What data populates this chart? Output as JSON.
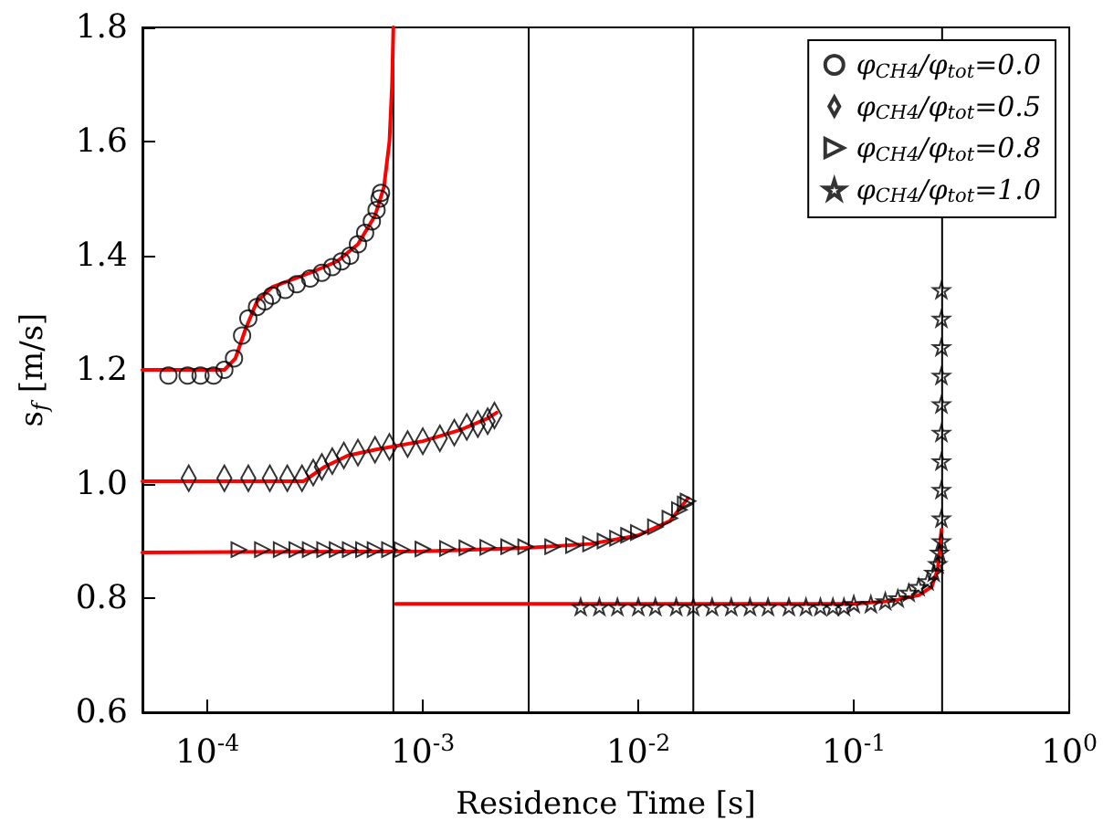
{
  "chart_data": {
    "type": "scatter",
    "xlabel": "Residence Time [s]",
    "ylabel": "s$_{f}$ [m/s]",
    "log": "x",
    "grid": false,
    "legend": "top right",
    "xlim": [
      5e-05,
      1
    ],
    "ylim": [
      0.6,
      1.8
    ],
    "xticks": [
      {
        "value": 0.0001,
        "label": "10$^{-4}$"
      },
      {
        "value": 0.001,
        "label": "10$^{-3}$"
      },
      {
        "value": 0.01,
        "label": "10$^{-2}$"
      },
      {
        "value": 0.1,
        "label": "10$^{-1}$"
      },
      {
        "value": 1,
        "label": "10$^{0}$"
      }
    ],
    "yticks": [
      0.6,
      0.8,
      {
        "value": 1.0,
        "label": "1.0"
      },
      1.2,
      1.4,
      1.6,
      1.8
    ],
    "ref_lines": [
      {
        "axis": "x",
        "value": 0.00073,
        "color": "#000000"
      },
      {
        "axis": "x",
        "value": 0.0031,
        "color": "#000000"
      },
      {
        "axis": "x",
        "value": 0.018,
        "color": "#000000"
      },
      {
        "axis": "x",
        "value": 0.257,
        "color": "#000000"
      }
    ],
    "series": [
      {
        "type": "line",
        "color": "#ff0000",
        "marker": "none",
        "x": [
          5e-05,
          0.00012,
          0.000135,
          0.00015,
          0.00017,
          0.0002,
          0.0003,
          0.0004,
          0.0005,
          0.0006,
          0.00066,
          0.0007,
          0.00072,
          0.00073
        ],
        "values": [
          1.2,
          1.2,
          1.22,
          1.27,
          1.32,
          1.345,
          1.37,
          1.39,
          1.42,
          1.47,
          1.52,
          1.6,
          1.7,
          1.8
        ]
      },
      {
        "type": "line",
        "color": "#ff0000",
        "marker": "none",
        "x": [
          5e-05,
          0.00028,
          0.00035,
          0.00045,
          0.0006,
          0.001,
          0.0015,
          0.002,
          0.0022
        ],
        "values": [
          1.005,
          1.005,
          1.03,
          1.05,
          1.06,
          1.075,
          1.095,
          1.115,
          1.125
        ]
      },
      {
        "type": "line",
        "color": "#ff0000",
        "marker": "none",
        "x": [
          5e-05,
          0.001,
          0.003,
          0.006,
          0.01,
          0.014,
          0.017
        ],
        "values": [
          0.88,
          0.882,
          0.888,
          0.895,
          0.91,
          0.935,
          0.975
        ]
      },
      {
        "type": "line",
        "color": "#ff0000",
        "marker": "none",
        "x": [
          0.00075,
          0.05,
          0.1,
          0.15,
          0.2,
          0.23,
          0.245,
          0.25,
          0.255
        ],
        "values": [
          0.79,
          0.79,
          0.79,
          0.795,
          0.805,
          0.82,
          0.85,
          0.88,
          0.92
        ]
      },
      {
        "name": "φ$_{CH4}$/φ$_{tot}$=0.0",
        "color": "#000000",
        "marker": "circle",
        "x": [
          6.6e-05,
          8.1e-05,
          9.3e-05,
          0.000107,
          0.00012,
          0.000133,
          0.000145,
          0.000155,
          0.00017,
          0.000185,
          0.0002,
          0.00023,
          0.00026,
          0.0003,
          0.00034,
          0.00038,
          0.00042,
          0.00046,
          0.0005,
          0.00054,
          0.00058,
          0.00061,
          0.00063,
          0.00064
        ],
        "values": [
          1.19,
          1.19,
          1.19,
          1.19,
          1.2,
          1.22,
          1.26,
          1.29,
          1.31,
          1.32,
          1.33,
          1.34,
          1.35,
          1.36,
          1.37,
          1.38,
          1.39,
          1.4,
          1.42,
          1.44,
          1.46,
          1.48,
          1.5,
          1.51
        ]
      },
      {
        "name": "φ$_{CH4}$/φ$_{tot}$=0.5",
        "color": "#000000",
        "marker": "diamond",
        "x": [
          8.2e-05,
          0.00012,
          0.000155,
          0.000195,
          0.000235,
          0.000275,
          0.00031,
          0.00034,
          0.00038,
          0.00043,
          0.0005,
          0.0006,
          0.0007,
          0.00085,
          0.001,
          0.0012,
          0.0014,
          0.0016,
          0.0018,
          0.002,
          0.00215
        ],
        "values": [
          1.01,
          1.01,
          1.01,
          1.01,
          1.01,
          1.01,
          1.02,
          1.03,
          1.04,
          1.05,
          1.055,
          1.06,
          1.065,
          1.07,
          1.075,
          1.08,
          1.09,
          1.1,
          1.105,
          1.11,
          1.12
        ]
      },
      {
        "name": "φ$_{CH4}$/φ$_{tot}$=0.8",
        "color": "#000000",
        "marker": "triangle",
        "x": [
          0.00014,
          0.00018,
          0.00022,
          0.00026,
          0.0003,
          0.00035,
          0.0004,
          0.00046,
          0.00053,
          0.0006,
          0.0007,
          0.0008,
          0.001,
          0.0013,
          0.0016,
          0.002,
          0.0025,
          0.003,
          0.004,
          0.005,
          0.006,
          0.007,
          0.008,
          0.009,
          0.01,
          0.012,
          0.014,
          0.0155,
          0.0165,
          0.017
        ],
        "values": [
          0.885,
          0.885,
          0.885,
          0.885,
          0.885,
          0.885,
          0.885,
          0.885,
          0.885,
          0.885,
          0.885,
          0.885,
          0.886,
          0.887,
          0.888,
          0.889,
          0.89,
          0.89,
          0.89,
          0.892,
          0.895,
          0.9,
          0.905,
          0.91,
          0.915,
          0.925,
          0.94,
          0.955,
          0.965,
          0.97
        ]
      },
      {
        "name": "φ$_{CH4}$/φ$_{tot}$=1.0",
        "color": "#000000",
        "marker": "star",
        "x": [
          0.0054,
          0.0066,
          0.008,
          0.01,
          0.012,
          0.015,
          0.018,
          0.022,
          0.027,
          0.033,
          0.04,
          0.05,
          0.06,
          0.07,
          0.08,
          0.09,
          0.1,
          0.12,
          0.14,
          0.16,
          0.18,
          0.2,
          0.22,
          0.235,
          0.245,
          0.25,
          0.255,
          0.255,
          0.255,
          0.255,
          0.255,
          0.255,
          0.255,
          0.255,
          0.255,
          0.255
        ],
        "values": [
          0.785,
          0.785,
          0.785,
          0.785,
          0.785,
          0.785,
          0.785,
          0.785,
          0.785,
          0.785,
          0.785,
          0.785,
          0.785,
          0.785,
          0.785,
          0.785,
          0.79,
          0.79,
          0.795,
          0.8,
          0.81,
          0.82,
          0.83,
          0.845,
          0.86,
          0.88,
          0.9,
          0.94,
          0.99,
          1.04,
          1.09,
          1.14,
          1.19,
          1.24,
          1.29,
          1.34
        ]
      }
    ]
  }
}
